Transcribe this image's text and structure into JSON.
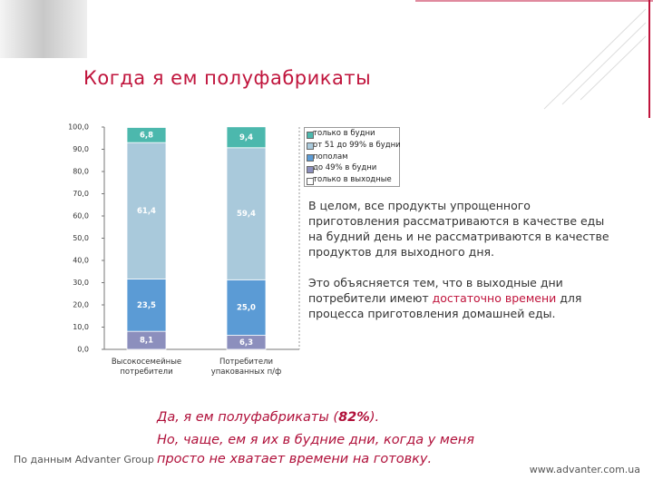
{
  "slide": {
    "title": "Когда я ем полуфабрикаты",
    "body": [
      "В целом, все продукты упрощенного приготовления рассматриваются в качестве еды на будний день и не рассматриваются в качестве продуктов для выходного дня.",
      [
        "Это объясняется тем, что в выходные дни потребители имеют ",
        "достаточно времени",
        " для процесса приготовления домашней еды."
      ]
    ],
    "quote": [
      [
        "Да, я ем полуфабрикаты (",
        "82%",
        ")."
      ],
      "Но, чаще, ем я их в будние дни, когда у меня просто не хватает времени на готовку."
    ],
    "source": "По данным Advanter Group",
    "website": "www.advanter.com.ua"
  },
  "chart_data": {
    "type": "stacked-bar",
    "categories": [
      "Высокосемейные потребители",
      "Потребители упакованных п/ф"
    ],
    "series": [
      {
        "name": "только в выходные",
        "color": "#ffffff",
        "values": [
          null,
          null
        ]
      },
      {
        "name": "до 49% в будни",
        "color": "#8c8fbd",
        "values": [
          8.1,
          6.3
        ],
        "value_labels": [
          "8,1",
          "6,3"
        ]
      },
      {
        "name": "пополам",
        "color": "#5b9bd5",
        "values": [
          23.5,
          25.0
        ],
        "value_labels": [
          "23,5",
          "25,0"
        ]
      },
      {
        "name": "от 51 до 99% в будни",
        "color": "#a9c9db",
        "values": [
          61.4,
          59.4
        ],
        "value_labels": [
          "61,4",
          "59,4"
        ]
      },
      {
        "name": "только в будни",
        "color": "#4cb8ad",
        "values": [
          6.8,
          9.4
        ],
        "value_labels": [
          "6,8",
          "9,4"
        ]
      }
    ],
    "ylim": [
      0,
      100
    ],
    "yticks": [
      {
        "value": 0,
        "label": "0,0"
      },
      {
        "value": 10,
        "label": "10,0"
      },
      {
        "value": 20,
        "label": "20,0"
      },
      {
        "value": 30,
        "label": "30,0"
      },
      {
        "value": 40,
        "label": "40,0"
      },
      {
        "value": 50,
        "label": "50,0"
      },
      {
        "value": 60,
        "label": "60,0"
      },
      {
        "value": 70,
        "label": "70,0"
      },
      {
        "value": 80,
        "label": "80,0"
      },
      {
        "value": 90,
        "label": "90,0"
      },
      {
        "value": 100,
        "label": "100,0"
      }
    ]
  }
}
